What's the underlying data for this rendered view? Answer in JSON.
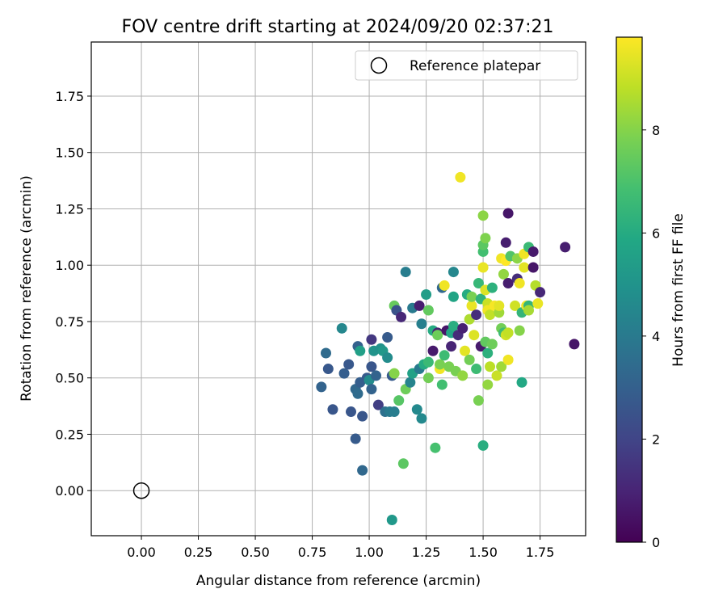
{
  "chart_data": {
    "type": "scatter",
    "title": "FOV centre drift starting at 2024/09/20 02:37:21",
    "xlabel": "Angular distance from reference (arcmin)",
    "ylabel": "Rotation from reference (arcmin)",
    "xlim": [
      -0.22,
      1.95
    ],
    "ylim": [
      -0.2,
      1.99
    ],
    "xticks": [
      "0.00",
      "0.25",
      "0.50",
      "0.75",
      "1.00",
      "1.25",
      "1.50",
      "1.75"
    ],
    "yticks": [
      "0.00",
      "0.25",
      "0.50",
      "0.75",
      "1.00",
      "1.25",
      "1.50",
      "1.75"
    ],
    "grid": true,
    "legend": {
      "position": "top-right",
      "entries": [
        "Reference platepar"
      ]
    },
    "reference": {
      "name": "Reference platepar",
      "x": 0.0,
      "y": 0.0
    },
    "colorbar": {
      "label": "Hours from first FF file",
      "colormap": "viridis",
      "range": [
        0,
        9.8
      ],
      "ticks": [
        "0",
        "2",
        "4",
        "6",
        "8"
      ]
    },
    "points": [
      {
        "x": 0.79,
        "y": 0.46,
        "h": 3.1
      },
      {
        "x": 0.81,
        "y": 0.61,
        "h": 3.4
      },
      {
        "x": 0.82,
        "y": 0.54,
        "h": 2.7
      },
      {
        "x": 0.84,
        "y": 0.36,
        "h": 2.6
      },
      {
        "x": 0.88,
        "y": 0.72,
        "h": 4.5
      },
      {
        "x": 0.89,
        "y": 0.52,
        "h": 2.9
      },
      {
        "x": 0.91,
        "y": 0.56,
        "h": 2.7
      },
      {
        "x": 0.92,
        "y": 0.35,
        "h": 2.6
      },
      {
        "x": 0.94,
        "y": 0.23,
        "h": 2.8
      },
      {
        "x": 0.94,
        "y": 0.45,
        "h": 3.3
      },
      {
        "x": 0.95,
        "y": 0.64,
        "h": 3.0
      },
      {
        "x": 0.95,
        "y": 0.43,
        "h": 3.4
      },
      {
        "x": 0.96,
        "y": 0.62,
        "h": 5.5
      },
      {
        "x": 0.96,
        "y": 0.48,
        "h": 2.9
      },
      {
        "x": 0.97,
        "y": 0.33,
        "h": 2.6
      },
      {
        "x": 0.97,
        "y": 0.09,
        "h": 3.3
      },
      {
        "x": 0.99,
        "y": 0.5,
        "h": 2.8
      },
      {
        "x": 1.0,
        "y": 0.49,
        "h": 4.7
      },
      {
        "x": 1.01,
        "y": 0.67,
        "h": 1.6
      },
      {
        "x": 1.01,
        "y": 0.55,
        "h": 2.6
      },
      {
        "x": 1.01,
        "y": 0.45,
        "h": 3.1
      },
      {
        "x": 1.02,
        "y": 0.62,
        "h": 5.0
      },
      {
        "x": 1.03,
        "y": 0.51,
        "h": 3.1
      },
      {
        "x": 1.04,
        "y": 0.38,
        "h": 1.8
      },
      {
        "x": 1.05,
        "y": 0.63,
        "h": 4.9
      },
      {
        "x": 1.06,
        "y": 0.62,
        "h": 5.2
      },
      {
        "x": 1.07,
        "y": 0.35,
        "h": 3.6
      },
      {
        "x": 1.08,
        "y": 0.68,
        "h": 2.8
      },
      {
        "x": 1.08,
        "y": 0.59,
        "h": 4.7
      },
      {
        "x": 1.09,
        "y": 0.35,
        "h": 4.0
      },
      {
        "x": 1.1,
        "y": 0.51,
        "h": 2.8
      },
      {
        "x": 1.1,
        "y": -0.13,
        "h": 5.2
      },
      {
        "x": 1.11,
        "y": 0.82,
        "h": 7.5
      },
      {
        "x": 1.11,
        "y": 0.52,
        "h": 8.0
      },
      {
        "x": 1.11,
        "y": 0.35,
        "h": 4.1
      },
      {
        "x": 1.12,
        "y": 0.8,
        "h": 2.5
      },
      {
        "x": 1.13,
        "y": 0.4,
        "h": 7.2
      },
      {
        "x": 1.14,
        "y": 0.77,
        "h": 1.1
      },
      {
        "x": 1.15,
        "y": 0.12,
        "h": 7.3
      },
      {
        "x": 1.16,
        "y": 0.97,
        "h": 4.1
      },
      {
        "x": 1.16,
        "y": 0.45,
        "h": 7.6
      },
      {
        "x": 1.18,
        "y": 0.48,
        "h": 4.4
      },
      {
        "x": 1.19,
        "y": 0.52,
        "h": 5.6
      },
      {
        "x": 1.19,
        "y": 0.81,
        "h": 4.0
      },
      {
        "x": 1.21,
        "y": 0.36,
        "h": 4.6
      },
      {
        "x": 1.22,
        "y": 0.82,
        "h": 0.8
      },
      {
        "x": 1.22,
        "y": 0.54,
        "h": 4.0
      },
      {
        "x": 1.23,
        "y": 0.74,
        "h": 4.2
      },
      {
        "x": 1.23,
        "y": 0.32,
        "h": 4.6
      },
      {
        "x": 1.24,
        "y": 0.56,
        "h": 6.0
      },
      {
        "x": 1.25,
        "y": 0.87,
        "h": 5.4
      },
      {
        "x": 1.26,
        "y": 0.5,
        "h": 7.7
      },
      {
        "x": 1.26,
        "y": 0.57,
        "h": 6.6
      },
      {
        "x": 1.26,
        "y": 0.8,
        "h": 7.4
      },
      {
        "x": 1.28,
        "y": 0.62,
        "h": 0.7
      },
      {
        "x": 1.28,
        "y": 0.71,
        "h": 6.0
      },
      {
        "x": 1.29,
        "y": 0.19,
        "h": 6.9
      },
      {
        "x": 1.3,
        "y": 0.7,
        "h": 0.9
      },
      {
        "x": 1.3,
        "y": 0.69,
        "h": 7.6
      },
      {
        "x": 1.31,
        "y": 0.54,
        "h": 9.6
      },
      {
        "x": 1.31,
        "y": 0.56,
        "h": 7.8
      },
      {
        "x": 1.32,
        "y": 0.9,
        "h": 3.3
      },
      {
        "x": 1.32,
        "y": 0.47,
        "h": 6.8
      },
      {
        "x": 1.33,
        "y": 0.91,
        "h": 9.6
      },
      {
        "x": 1.33,
        "y": 0.6,
        "h": 6.7
      },
      {
        "x": 1.34,
        "y": 0.71,
        "h": 0.6
      },
      {
        "x": 1.35,
        "y": 0.55,
        "h": 7.8
      },
      {
        "x": 1.36,
        "y": 0.64,
        "h": 1.0
      },
      {
        "x": 1.36,
        "y": 0.7,
        "h": 5.8
      },
      {
        "x": 1.37,
        "y": 0.86,
        "h": 5.7
      },
      {
        "x": 1.37,
        "y": 0.97,
        "h": 4.5
      },
      {
        "x": 1.37,
        "y": 0.73,
        "h": 6.1
      },
      {
        "x": 1.38,
        "y": 0.53,
        "h": 7.8
      },
      {
        "x": 1.39,
        "y": 0.69,
        "h": 1.2
      },
      {
        "x": 1.4,
        "y": 1.39,
        "h": 9.6
      },
      {
        "x": 1.41,
        "y": 0.72,
        "h": 0.9
      },
      {
        "x": 1.41,
        "y": 0.51,
        "h": 8.2
      },
      {
        "x": 1.42,
        "y": 0.62,
        "h": 9.4
      },
      {
        "x": 1.43,
        "y": 0.87,
        "h": 6.0
      },
      {
        "x": 1.44,
        "y": 0.58,
        "h": 7.7
      },
      {
        "x": 1.44,
        "y": 0.76,
        "h": 8.6
      },
      {
        "x": 1.45,
        "y": 0.82,
        "h": 9.5
      },
      {
        "x": 1.45,
        "y": 0.86,
        "h": 7.8
      },
      {
        "x": 1.46,
        "y": 0.69,
        "h": 9.3
      },
      {
        "x": 1.47,
        "y": 0.78,
        "h": 1.3
      },
      {
        "x": 1.47,
        "y": 0.54,
        "h": 6.7
      },
      {
        "x": 1.48,
        "y": 0.4,
        "h": 7.8
      },
      {
        "x": 1.48,
        "y": 0.92,
        "h": 6.5
      },
      {
        "x": 1.49,
        "y": 0.85,
        "h": 6.3
      },
      {
        "x": 1.49,
        "y": 0.64,
        "h": 0.7
      },
      {
        "x": 1.5,
        "y": 0.2,
        "h": 6.1
      },
      {
        "x": 1.5,
        "y": 1.06,
        "h": 6.8
      },
      {
        "x": 1.5,
        "y": 1.09,
        "h": 7.3
      },
      {
        "x": 1.5,
        "y": 1.22,
        "h": 8.1
      },
      {
        "x": 1.5,
        "y": 0.99,
        "h": 9.5
      },
      {
        "x": 1.51,
        "y": 0.89,
        "h": 9.3
      },
      {
        "x": 1.51,
        "y": 1.12,
        "h": 7.9
      },
      {
        "x": 1.51,
        "y": 0.66,
        "h": 7.4
      },
      {
        "x": 1.52,
        "y": 0.47,
        "h": 8.2
      },
      {
        "x": 1.52,
        "y": 0.61,
        "h": 6.2
      },
      {
        "x": 1.52,
        "y": 0.83,
        "h": 9.0
      },
      {
        "x": 1.52,
        "y": 0.8,
        "h": 9.6
      },
      {
        "x": 1.53,
        "y": 0.55,
        "h": 8.8
      },
      {
        "x": 1.53,
        "y": 0.78,
        "h": 8.9
      },
      {
        "x": 1.54,
        "y": 0.9,
        "h": 6.2
      },
      {
        "x": 1.54,
        "y": 0.65,
        "h": 7.6
      },
      {
        "x": 1.55,
        "y": 0.82,
        "h": 9.7
      },
      {
        "x": 1.56,
        "y": 0.51,
        "h": 9.0
      },
      {
        "x": 1.57,
        "y": 0.79,
        "h": 8.4
      },
      {
        "x": 1.57,
        "y": 0.82,
        "h": 9.4
      },
      {
        "x": 1.58,
        "y": 0.72,
        "h": 7.7
      },
      {
        "x": 1.58,
        "y": 0.55,
        "h": 8.4
      },
      {
        "x": 1.58,
        "y": 1.03,
        "h": 9.6
      },
      {
        "x": 1.59,
        "y": 0.96,
        "h": 8.2
      },
      {
        "x": 1.59,
        "y": 0.7,
        "h": 6.7
      },
      {
        "x": 1.6,
        "y": 1.1,
        "h": 0.8
      },
      {
        "x": 1.6,
        "y": 0.69,
        "h": 9.1
      },
      {
        "x": 1.6,
        "y": 1.02,
        "h": 9.8
      },
      {
        "x": 1.61,
        "y": 1.23,
        "h": 0.6
      },
      {
        "x": 1.61,
        "y": 0.92,
        "h": 0.8
      },
      {
        "x": 1.61,
        "y": 0.7,
        "h": 8.9
      },
      {
        "x": 1.61,
        "y": 0.58,
        "h": 9.6
      },
      {
        "x": 1.62,
        "y": 1.04,
        "h": 7.1
      },
      {
        "x": 1.64,
        "y": 0.82,
        "h": 9.1
      },
      {
        "x": 1.65,
        "y": 1.03,
        "h": 8.1
      },
      {
        "x": 1.65,
        "y": 0.94,
        "h": 1.3
      },
      {
        "x": 1.66,
        "y": 0.92,
        "h": 9.6
      },
      {
        "x": 1.66,
        "y": 0.71,
        "h": 8.0
      },
      {
        "x": 1.67,
        "y": 0.79,
        "h": 6.4
      },
      {
        "x": 1.67,
        "y": 0.48,
        "h": 5.9
      },
      {
        "x": 1.68,
        "y": 1.05,
        "h": 9.6
      },
      {
        "x": 1.68,
        "y": 0.99,
        "h": 9.4
      },
      {
        "x": 1.69,
        "y": 0.82,
        "h": 9.6
      },
      {
        "x": 1.7,
        "y": 1.08,
        "h": 6.6
      },
      {
        "x": 1.7,
        "y": 0.82,
        "h": 6.4
      },
      {
        "x": 1.7,
        "y": 0.8,
        "h": 8.5
      },
      {
        "x": 1.72,
        "y": 0.99,
        "h": 0.6
      },
      {
        "x": 1.72,
        "y": 1.06,
        "h": 0.7
      },
      {
        "x": 1.73,
        "y": 0.91,
        "h": 8.7
      },
      {
        "x": 1.74,
        "y": 0.83,
        "h": 9.5
      },
      {
        "x": 1.75,
        "y": 0.88,
        "h": 1.1
      },
      {
        "x": 1.86,
        "y": 1.08,
        "h": 0.8
      },
      {
        "x": 1.9,
        "y": 0.65,
        "h": 0.6
      }
    ]
  }
}
